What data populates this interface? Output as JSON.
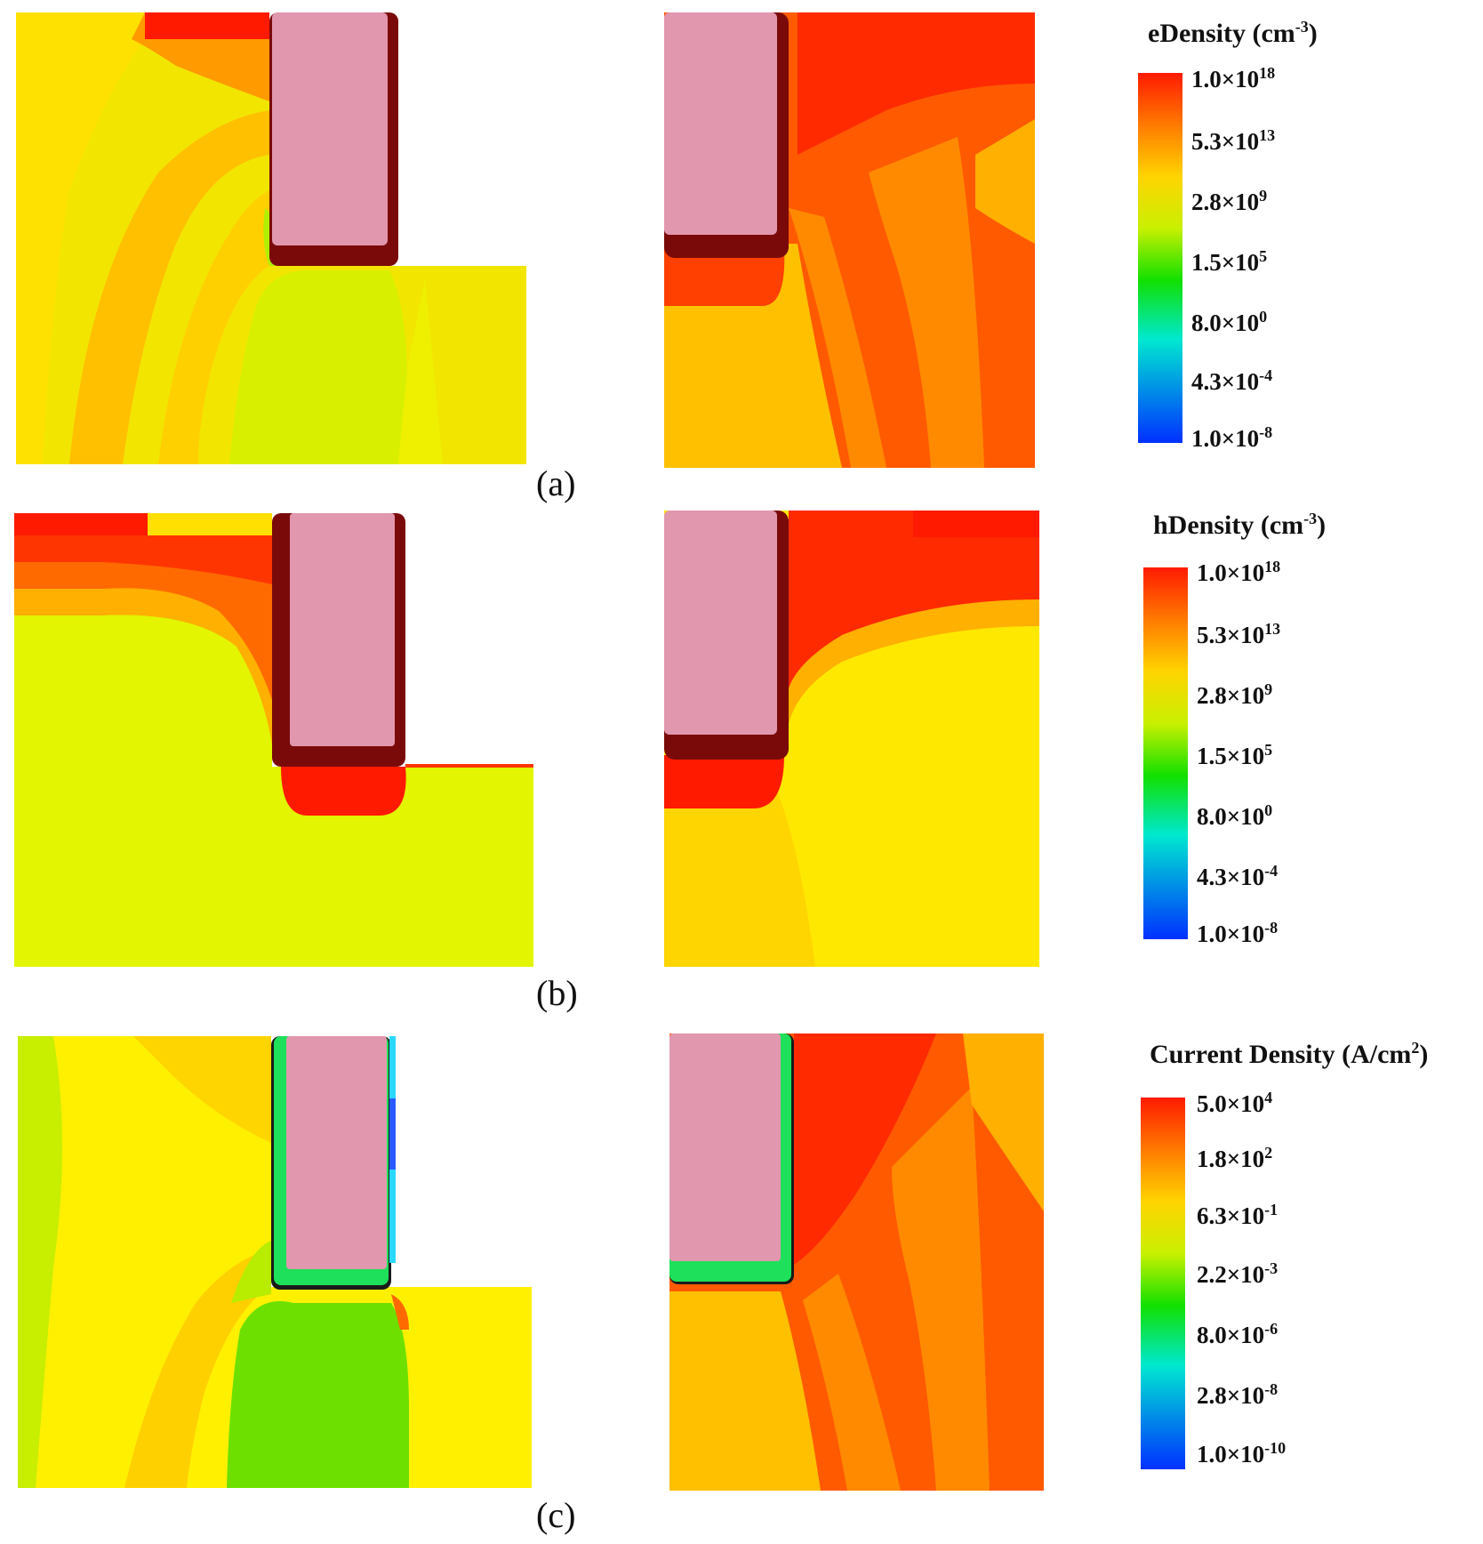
{
  "rows": [
    {
      "label": "(a)",
      "legend": {
        "title_base": "eDensity (cm",
        "title_sup": "-3",
        "title_end": ")",
        "ticks": [
          {
            "base": "1.0×10",
            "exp": "18"
          },
          {
            "base": "5.3×10",
            "exp": "13"
          },
          {
            "base": "2.8×10",
            "exp": "9"
          },
          {
            "base": "1.5×10",
            "exp": "5"
          },
          {
            "base": "8.0×10",
            "exp": "0"
          },
          {
            "base": "4.3×10",
            "exp": "-4"
          },
          {
            "base": "1.0×10",
            "exp": "-8"
          }
        ]
      }
    },
    {
      "label": "(b)",
      "legend": {
        "title_base": "hDensity (cm",
        "title_sup": "-3",
        "title_end": ")",
        "ticks": [
          {
            "base": "1.0×10",
            "exp": "18"
          },
          {
            "base": "5.3×10",
            "exp": "13"
          },
          {
            "base": "2.8×10",
            "exp": "9"
          },
          {
            "base": "1.5×10",
            "exp": "5"
          },
          {
            "base": "8.0×10",
            "exp": "0"
          },
          {
            "base": "4.3×10",
            "exp": "-4"
          },
          {
            "base": "1.0×10",
            "exp": "-8"
          }
        ]
      }
    },
    {
      "label": "(c)",
      "legend": {
        "title_base": "Current Density (A/cm",
        "title_sup": "2",
        "title_end": ")",
        "ticks": [
          {
            "base": "5.0×10",
            "exp": "4"
          },
          {
            "base": "1.8×10",
            "exp": "2"
          },
          {
            "base": "6.3×10",
            "exp": "-1"
          },
          {
            "base": "2.2×10",
            "exp": "-3"
          },
          {
            "base": "8.0×10",
            "exp": "-6"
          },
          {
            "base": "2.8×10",
            "exp": "-8"
          },
          {
            "base": "1.0×10",
            "exp": "-10"
          }
        ]
      }
    }
  ],
  "colors": {
    "gate": "#e197ae",
    "oxide": "#7a0a0a",
    "scale": [
      "#ff1a00",
      "#ff7a00",
      "#ffd400",
      "#c8f000",
      "#12e000",
      "#00e8d0",
      "#0030ff"
    ]
  }
}
